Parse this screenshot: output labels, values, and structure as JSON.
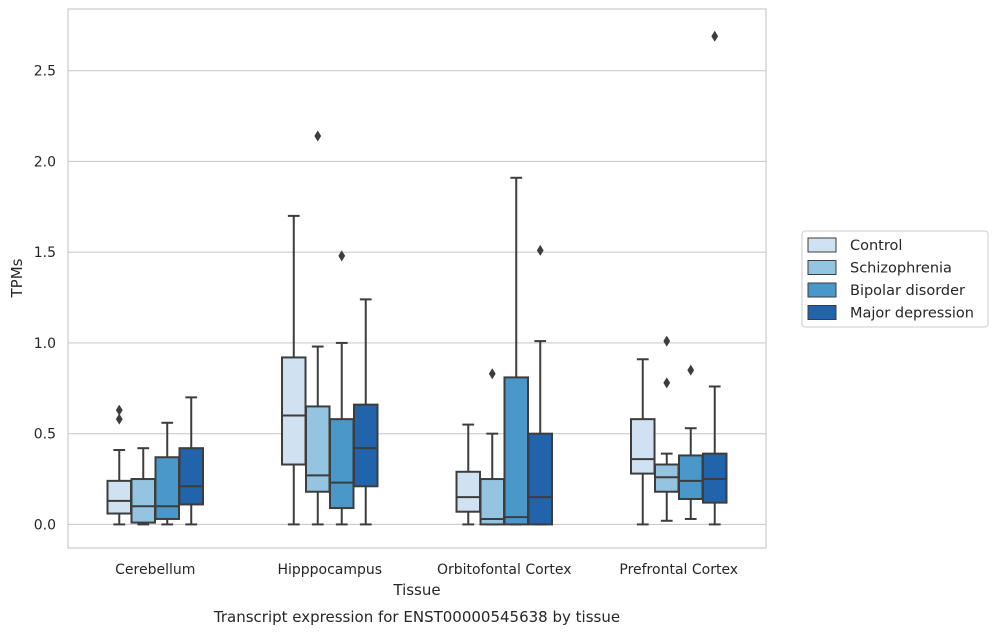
{
  "chart_data": {
    "type": "box",
    "caption": "Transcript expression for ENST00000545638 by tissue",
    "xlabel": "Tissue",
    "ylabel": "TPMs",
    "ylim": [
      -0.13,
      2.84
    ],
    "yticks": [
      0.0,
      0.5,
      1.0,
      1.5,
      2.0,
      2.5
    ],
    "ytick_labels": [
      "0.0",
      "0.5",
      "1.0",
      "1.5",
      "2.0",
      "2.5"
    ],
    "grid": "horizontal",
    "legend_position": "right",
    "categories": [
      "Cerebellum",
      "Hipppocampus",
      "Orbitofontal Cortex",
      "Prefrontal Cortex"
    ],
    "series": [
      {
        "name": "Control",
        "color": "#d0e1f2",
        "boxes": [
          {
            "whislo": 0.0,
            "q1": 0.06,
            "med": 0.13,
            "q3": 0.24,
            "whishi": 0.41,
            "fliers": [
              0.58,
              0.63
            ]
          },
          {
            "whislo": 0.0,
            "q1": 0.33,
            "med": 0.6,
            "q3": 0.92,
            "whishi": 1.7,
            "fliers": []
          },
          {
            "whislo": 0.0,
            "q1": 0.07,
            "med": 0.15,
            "q3": 0.29,
            "whishi": 0.55,
            "fliers": []
          },
          {
            "whislo": 0.0,
            "q1": 0.28,
            "med": 0.36,
            "q3": 0.58,
            "whishi": 0.91,
            "fliers": []
          }
        ]
      },
      {
        "name": "Schizophrenia",
        "color": "#94c4df",
        "boxes": [
          {
            "whislo": 0.0,
            "q1": 0.01,
            "med": 0.1,
            "q3": 0.25,
            "whishi": 0.42,
            "fliers": []
          },
          {
            "whislo": 0.0,
            "q1": 0.18,
            "med": 0.27,
            "q3": 0.65,
            "whishi": 0.98,
            "fliers": [
              2.14
            ]
          },
          {
            "whislo": 0.0,
            "q1": 0.0,
            "med": 0.03,
            "q3": 0.25,
            "whishi": 0.5,
            "fliers": [
              0.83
            ]
          },
          {
            "whislo": 0.02,
            "q1": 0.18,
            "med": 0.26,
            "q3": 0.33,
            "whishi": 0.39,
            "fliers": [
              0.78,
              1.01
            ]
          }
        ]
      },
      {
        "name": "Bipolar disorder",
        "color": "#4a98c9",
        "boxes": [
          {
            "whislo": 0.0,
            "q1": 0.03,
            "med": 0.1,
            "q3": 0.37,
            "whishi": 0.56,
            "fliers": []
          },
          {
            "whislo": 0.0,
            "q1": 0.09,
            "med": 0.23,
            "q3": 0.58,
            "whishi": 1.0,
            "fliers": [
              1.48
            ]
          },
          {
            "whislo": 0.0,
            "q1": 0.0,
            "med": 0.04,
            "q3": 0.81,
            "whishi": 1.91,
            "fliers": []
          },
          {
            "whislo": 0.03,
            "q1": 0.14,
            "med": 0.24,
            "q3": 0.38,
            "whishi": 0.53,
            "fliers": [
              0.85
            ]
          }
        ]
      },
      {
        "name": "Major depression",
        "color": "#2164ab",
        "boxes": [
          {
            "whislo": 0.0,
            "q1": 0.11,
            "med": 0.21,
            "q3": 0.42,
            "whishi": 0.7,
            "fliers": []
          },
          {
            "whislo": 0.0,
            "q1": 0.21,
            "med": 0.42,
            "q3": 0.66,
            "whishi": 1.24,
            "fliers": []
          },
          {
            "whislo": 0.0,
            "q1": 0.0,
            "med": 0.15,
            "q3": 0.5,
            "whishi": 1.01,
            "fliers": [
              1.51
            ]
          },
          {
            "whislo": 0.0,
            "q1": 0.12,
            "med": 0.25,
            "q3": 0.39,
            "whishi": 0.76,
            "fliers": [
              2.69
            ]
          }
        ]
      }
    ]
  }
}
